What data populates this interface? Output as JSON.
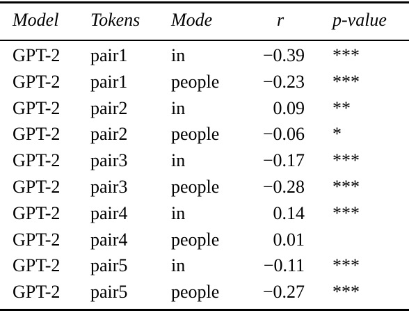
{
  "table": {
    "header": [
      "Model",
      "Tokens",
      "Mode",
      "r",
      "p-value"
    ],
    "rows": [
      [
        "GPT-2",
        "pair1",
        "in",
        "−0.39",
        "***"
      ],
      [
        "GPT-2",
        "pair1",
        "people",
        "−0.23",
        "***"
      ],
      [
        "GPT-2",
        "pair2",
        "in",
        "0.09",
        "**"
      ],
      [
        "GPT-2",
        "pair2",
        "people",
        "−0.06",
        "*"
      ],
      [
        "GPT-2",
        "pair3",
        "in",
        "−0.17",
        "***"
      ],
      [
        "GPT-2",
        "pair3",
        "people",
        "−0.28",
        "***"
      ],
      [
        "GPT-2",
        "pair4",
        "in",
        "0.14",
        "***"
      ],
      [
        "GPT-2",
        "pair4",
        "people",
        "0.01",
        null
      ],
      [
        "GPT-2",
        "pair5",
        "in",
        "−0.11",
        "***"
      ],
      [
        "GPT-2",
        "pair5",
        "people",
        "−0.27",
        "***"
      ]
    ]
  }
}
